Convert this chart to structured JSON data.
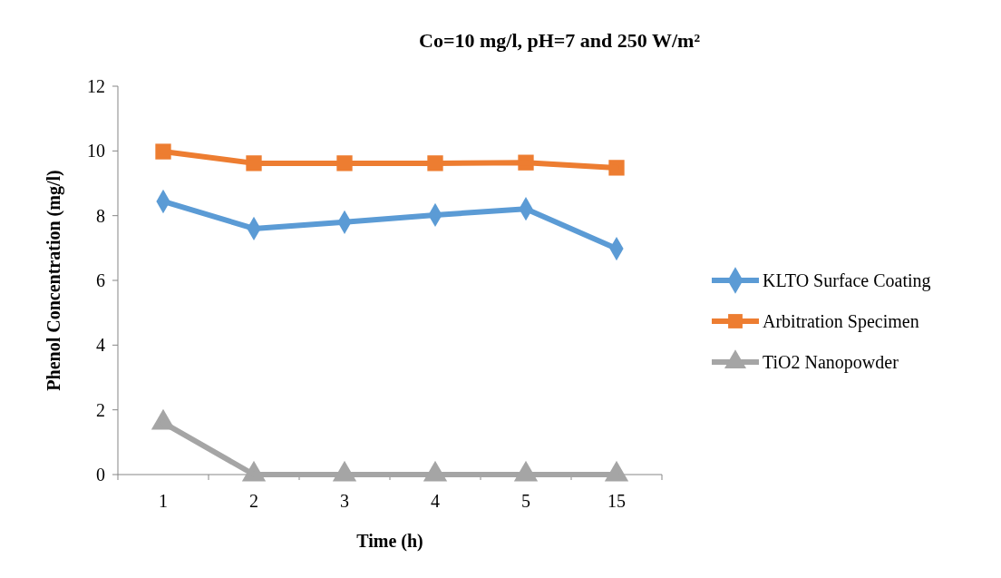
{
  "chart_data": {
    "type": "line",
    "title": "Co=10 mg/l, pH=7 and 250 W/m²",
    "xlabel": "Time (h)",
    "ylabel": "Phenol Concentration (mg/l)",
    "categories": [
      "1",
      "2",
      "3",
      "4",
      "5",
      "15"
    ],
    "series": [
      {
        "name": "KLTO Surface Coating",
        "color": "#5b9bd5",
        "marker": "diamond",
        "values": [
          8.44,
          7.6,
          7.8,
          8.02,
          8.21,
          6.98
        ]
      },
      {
        "name": "Arbitration Specimen",
        "color": "#ed7d31",
        "marker": "square",
        "values": [
          9.98,
          9.62,
          9.62,
          9.62,
          9.64,
          9.48
        ]
      },
      {
        "name": "TiO2 Nanopowder",
        "color": "#a5a5a5",
        "marker": "triangle",
        "values": [
          1.6,
          0,
          0,
          0,
          0,
          0
        ]
      }
    ],
    "ylim": [
      0,
      12
    ],
    "yticks": [
      0,
      2,
      4,
      6,
      8,
      10,
      12
    ],
    "grid": false,
    "legend": "right",
    "line_style": "solid"
  }
}
